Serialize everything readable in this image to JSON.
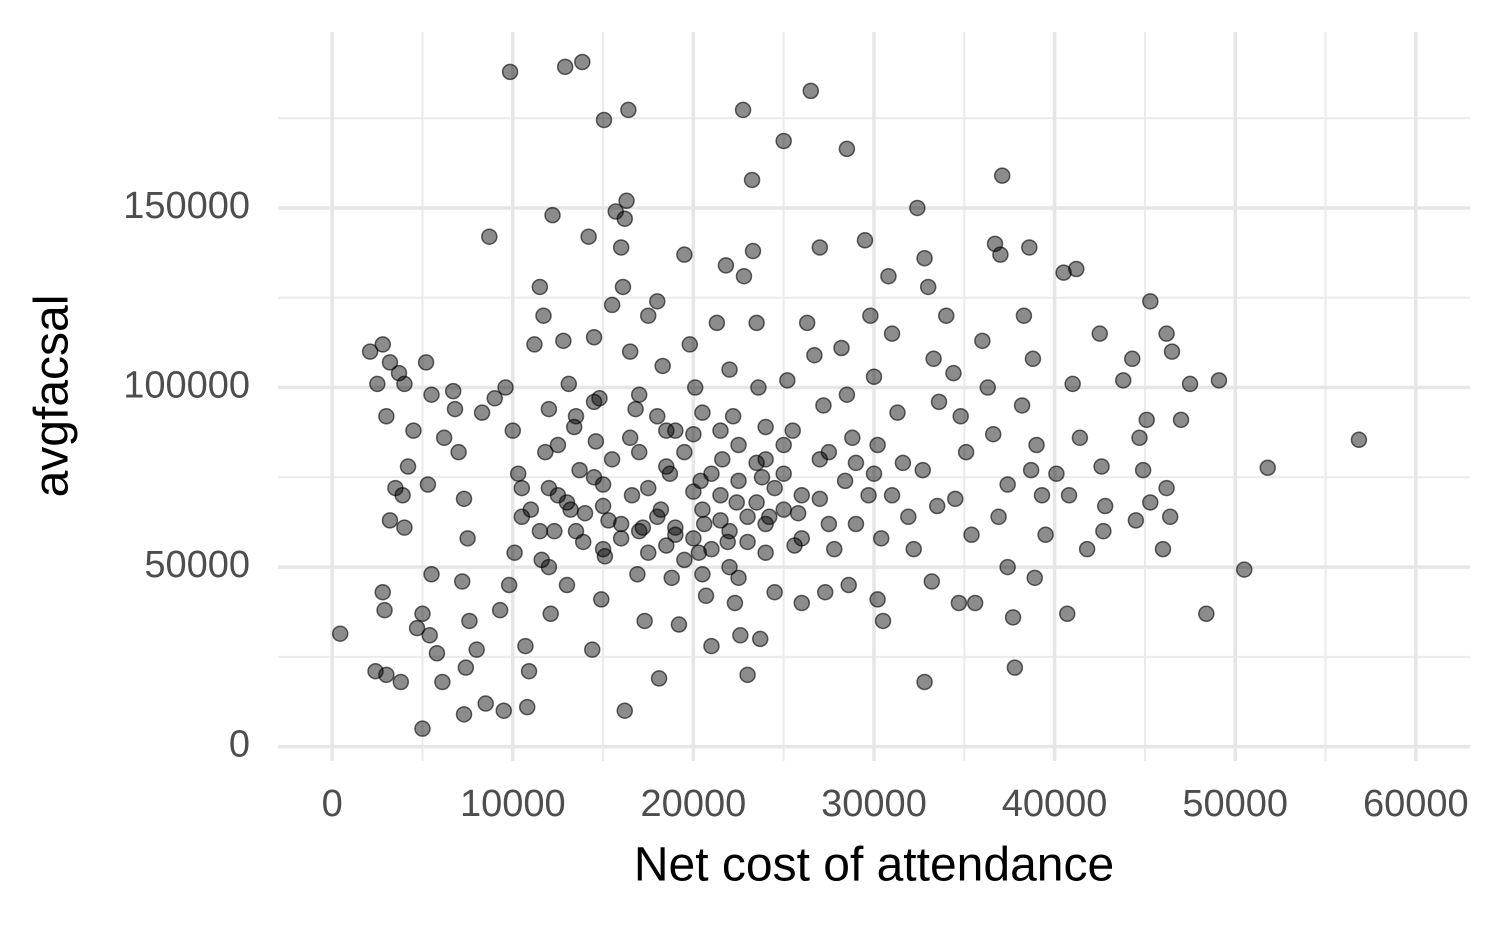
{
  "chart_data": {
    "type": "scatter",
    "x_label": "Net cost of attendance",
    "y_label": "avgfacsal",
    "xlim": [
      -3000,
      63000
    ],
    "ylim": [
      -4000,
      199000
    ],
    "xticks": [
      0,
      10000,
      20000,
      30000,
      40000,
      50000,
      60000
    ],
    "yticks": [
      0,
      50000,
      100000,
      150000
    ],
    "minor_xticks": [
      5000,
      15000,
      25000,
      35000,
      45000,
      55000
    ],
    "minor_yticks": [
      25000,
      75000,
      125000,
      175000
    ],
    "grid": true,
    "color": "#000000",
    "x": [
      443,
      2100,
      2500,
      2800,
      3200,
      3700,
      4000,
      3000,
      4500,
      4200,
      3500,
      3900,
      3200,
      4000,
      2800,
      2900,
      2400,
      3000,
      3800,
      4700,
      5000,
      5500,
      5400,
      5800,
      6100,
      5000,
      5300,
      5500,
      5200,
      6200,
      6800,
      6700,
      7000,
      7300,
      7500,
      7200,
      7600,
      7400,
      7300,
      8000,
      8500,
      9500,
      10800,
      8300,
      8700,
      9000,
      9600,
      10000,
      10300,
      10500,
      10100,
      9800,
      9300,
      10700,
      10900,
      11200,
      11500,
      11700,
      12200,
      12000,
      11800,
      12500,
      12300,
      11600,
      12100,
      12800,
      13100,
      13400,
      13700,
      13200,
      13900,
      13000,
      14200,
      14500,
      14800,
      14600,
      15000,
      15300,
      15100,
      14900,
      14400,
      15500,
      15700,
      16000,
      16200,
      16300,
      16100,
      16500,
      16800,
      17000,
      16600,
      17200,
      16900,
      17300,
      16200,
      17500,
      18000,
      18300,
      18500,
      18700,
      18200,
      19000,
      18800,
      19200,
      18100,
      19500,
      19800,
      20100,
      20000,
      20400,
      20600,
      20300,
      20700,
      21000,
      21300,
      21800,
      22000,
      22200,
      21600,
      22400,
      21900,
      22500,
      22300,
      22600,
      23000,
      22800,
      23300,
      23500,
      23600,
      24000,
      23800,
      24200,
      24000,
      24500,
      23700,
      25200,
      25500,
      25000,
      25800,
      25600,
      26000,
      26300,
      26700,
      27000,
      27200,
      27500,
      27000,
      27800,
      27300,
      28200,
      28500,
      28800,
      28400,
      29000,
      28600,
      29500,
      29800,
      30000,
      30200,
      29700,
      30400,
      30200,
      30500,
      30800,
      31000,
      31300,
      31600,
      31900,
      32200,
      32400,
      32800,
      33000,
      33300,
      33600,
      32700,
      33500,
      33200,
      32800,
      34000,
      34400,
      34800,
      35100,
      34500,
      35400,
      34700,
      35600,
      36000,
      36300,
      36700,
      37000,
      37100,
      36600,
      37400,
      36900,
      37400,
      37700,
      37800,
      38300,
      38600,
      38800,
      38200,
      39000,
      38700,
      39300,
      39500,
      38900,
      40100,
      40500,
      41200,
      40800,
      41000,
      41400,
      41800,
      40700,
      42500,
      42600,
      42800,
      42700,
      43800,
      44300,
      44700,
      44900,
      45100,
      45300,
      44500,
      46200,
      46500,
      46200,
      46400,
      46000,
      47000,
      47500,
      45300,
      48400,
      49100,
      50500,
      51800,
      56850,
      9850,
      12900,
      13850,
      26500,
      22750,
      16400,
      15050,
      25000,
      28500,
      23250,
      12000,
      13000,
      14000,
      15000,
      16000,
      17000,
      18000,
      19000,
      20000,
      21000,
      22000,
      23000,
      24000,
      25000,
      26000,
      14500,
      15500,
      16500,
      17500,
      18500,
      19500,
      20500,
      21500,
      22500,
      23500,
      24500,
      13500,
      14500,
      18000,
      20500,
      21500,
      19500,
      20500,
      21500,
      22000,
      23000,
      16000,
      15000,
      13500,
      12500,
      11000,
      11500,
      10500,
      27000,
      29000,
      30000,
      31000,
      26000,
      27500,
      24000,
      25000,
      12000,
      17500,
      18500,
      20000,
      21000,
      22500,
      23500,
      19000,
      17000
    ],
    "values": [
      31450,
      110000,
      101000,
      112000,
      107000,
      104000,
      101000,
      92000,
      88000,
      78000,
      72000,
      70000,
      63000,
      61000,
      43000,
      38000,
      21000,
      20000,
      18000,
      33000,
      37000,
      48000,
      31000,
      26000,
      18000,
      5000,
      73000,
      98000,
      107000,
      86000,
      94000,
      99000,
      82000,
      69000,
      58000,
      46000,
      35000,
      22000,
      9000,
      27000,
      12000,
      10000,
      11000,
      93000,
      142000,
      97000,
      100000,
      88000,
      76000,
      64000,
      54000,
      45000,
      38000,
      28000,
      21000,
      112000,
      128000,
      120000,
      148000,
      94000,
      82000,
      70000,
      60000,
      52000,
      37000,
      113000,
      101000,
      89000,
      77000,
      66000,
      57000,
      45000,
      142000,
      114000,
      97000,
      85000,
      73000,
      63000,
      53000,
      41000,
      27000,
      123000,
      149000,
      139000,
      147000,
      152000,
      128000,
      110000,
      94000,
      82000,
      70000,
      61000,
      48000,
      35000,
      10000,
      120000,
      124000,
      106000,
      88000,
      76000,
      66000,
      59000,
      47000,
      34000,
      19000,
      137000,
      112000,
      100000,
      87000,
      74000,
      62000,
      54000,
      42000,
      28000,
      118000,
      134000,
      105000,
      92000,
      80000,
      68000,
      57000,
      47000,
      40000,
      31000,
      20000,
      131000,
      138000,
      118000,
      100000,
      89000,
      75000,
      64000,
      54000,
      43000,
      30000,
      102000,
      88000,
      76000,
      65000,
      56000,
      40000,
      118000,
      109000,
      139000,
      95000,
      82000,
      69000,
      55000,
      43000,
      111000,
      98000,
      86000,
      74000,
      62000,
      45000,
      141000,
      120000,
      103000,
      84000,
      70000,
      58000,
      41000,
      35000,
      131000,
      115000,
      93000,
      79000,
      64000,
      55000,
      150000,
      136000,
      128000,
      108000,
      96000,
      77000,
      67000,
      46000,
      18000,
      120000,
      104000,
      92000,
      82000,
      69000,
      59000,
      40000,
      40000,
      113000,
      100000,
      140000,
      137000,
      159000,
      87000,
      73000,
      64000,
      50000,
      36000,
      22000,
      120000,
      139000,
      108000,
      95000,
      84000,
      77000,
      70000,
      59000,
      47000,
      76000,
      132000,
      133000,
      70000,
      101000,
      86000,
      55000,
      37000,
      115000,
      78000,
      67000,
      60000,
      102000,
      108000,
      86000,
      77000,
      91000,
      68000,
      63000,
      115000,
      110000,
      72000,
      64000,
      55000,
      91000,
      101000,
      124000,
      37000,
      102000,
      49300,
      77650,
      85450,
      187900,
      189300,
      190650,
      182600,
      177300,
      177300,
      174500,
      168650,
      166450,
      157800,
      72000,
      68000,
      65000,
      67000,
      62000,
      60000,
      64000,
      61000,
      58000,
      55000,
      60000,
      57000,
      62000,
      66000,
      70000,
      75000,
      80000,
      86000,
      72000,
      78000,
      82000,
      66000,
      70000,
      74000,
      68000,
      72000,
      92000,
      96000,
      92000,
      93000,
      88000,
      52000,
      48000,
      63000,
      50000,
      64000,
      58000,
      55000,
      60000,
      84000,
      66000,
      60000,
      72000,
      80000,
      79000,
      76000,
      70000,
      58000,
      62000,
      80000,
      84000,
      50000,
      54000,
      56000,
      71000,
      76000,
      84000,
      79000,
      88000,
      98000
    ]
  }
}
